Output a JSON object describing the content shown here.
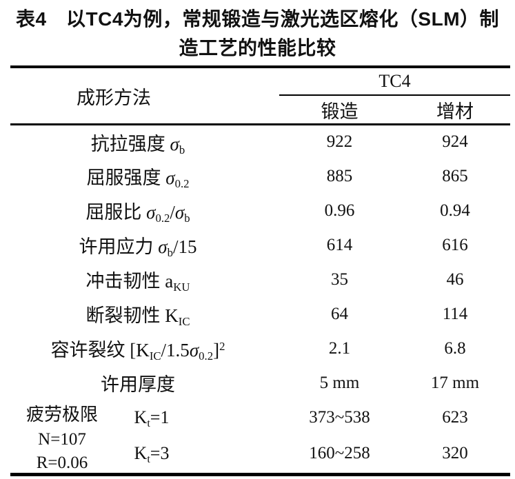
{
  "title": {
    "line1": "表4　以TC4为例，常规锻造与激光选区熔化（SLM）制",
    "line2": "造工艺的性能比较"
  },
  "header": {
    "method": "成形方法",
    "group": "TC4",
    "forging": "锻造",
    "additive": "增材"
  },
  "rows": [
    {
      "label": [
        [
          "抗拉强度 "
        ],
        [
          "σ",
          "i"
        ],
        [
          "b",
          "sub"
        ]
      ],
      "forging": "922",
      "additive": "924"
    },
    {
      "label": [
        [
          "屈服强度 "
        ],
        [
          "σ",
          "i"
        ],
        [
          "0.2",
          "sub"
        ]
      ],
      "forging": "885",
      "additive": "865"
    },
    {
      "label": [
        [
          "屈服比 "
        ],
        [
          "σ",
          "i"
        ],
        [
          "0.2",
          "sub"
        ],
        [
          "/"
        ],
        [
          "σ",
          "i"
        ],
        [
          "b",
          "sub"
        ]
      ],
      "forging": "0.96",
      "additive": "0.94"
    },
    {
      "label": [
        [
          "许用应力 "
        ],
        [
          "σ",
          "i"
        ],
        [
          "b",
          "sub"
        ],
        [
          "/15"
        ]
      ],
      "forging": "614",
      "additive": "616"
    },
    {
      "label": [
        [
          "冲击韧性 a"
        ],
        [
          "KU",
          "sub"
        ]
      ],
      "forging": "35",
      "additive": "46"
    },
    {
      "label": [
        [
          "断裂韧性 K"
        ],
        [
          "IC",
          "sub"
        ]
      ],
      "forging": "64",
      "additive": "114"
    },
    {
      "label": [
        [
          "容许裂纹 [K"
        ],
        [
          "IC",
          "sub"
        ],
        [
          "/1.5"
        ],
        [
          "σ",
          "i"
        ],
        [
          "0.2",
          "sub"
        ],
        [
          "]"
        ],
        [
          "2",
          "sup"
        ]
      ],
      "forging": "2.1",
      "additive": "6.8"
    },
    {
      "label": [
        [
          "许用厚度"
        ]
      ],
      "forging": "5 mm",
      "additive": "17 mm"
    }
  ],
  "fatigue": {
    "label_lines": [
      "疲劳极限",
      "N=107",
      "R=0.06"
    ],
    "rows": [
      {
        "k": [
          [
            "K"
          ],
          [
            "t",
            "sub"
          ],
          [
            "=1"
          ]
        ],
        "forging": "373~538",
        "additive": "623"
      },
      {
        "k": [
          [
            "K"
          ],
          [
            "t",
            "sub"
          ],
          [
            "=3"
          ]
        ],
        "forging": "160~258",
        "additive": "320"
      }
    ]
  }
}
